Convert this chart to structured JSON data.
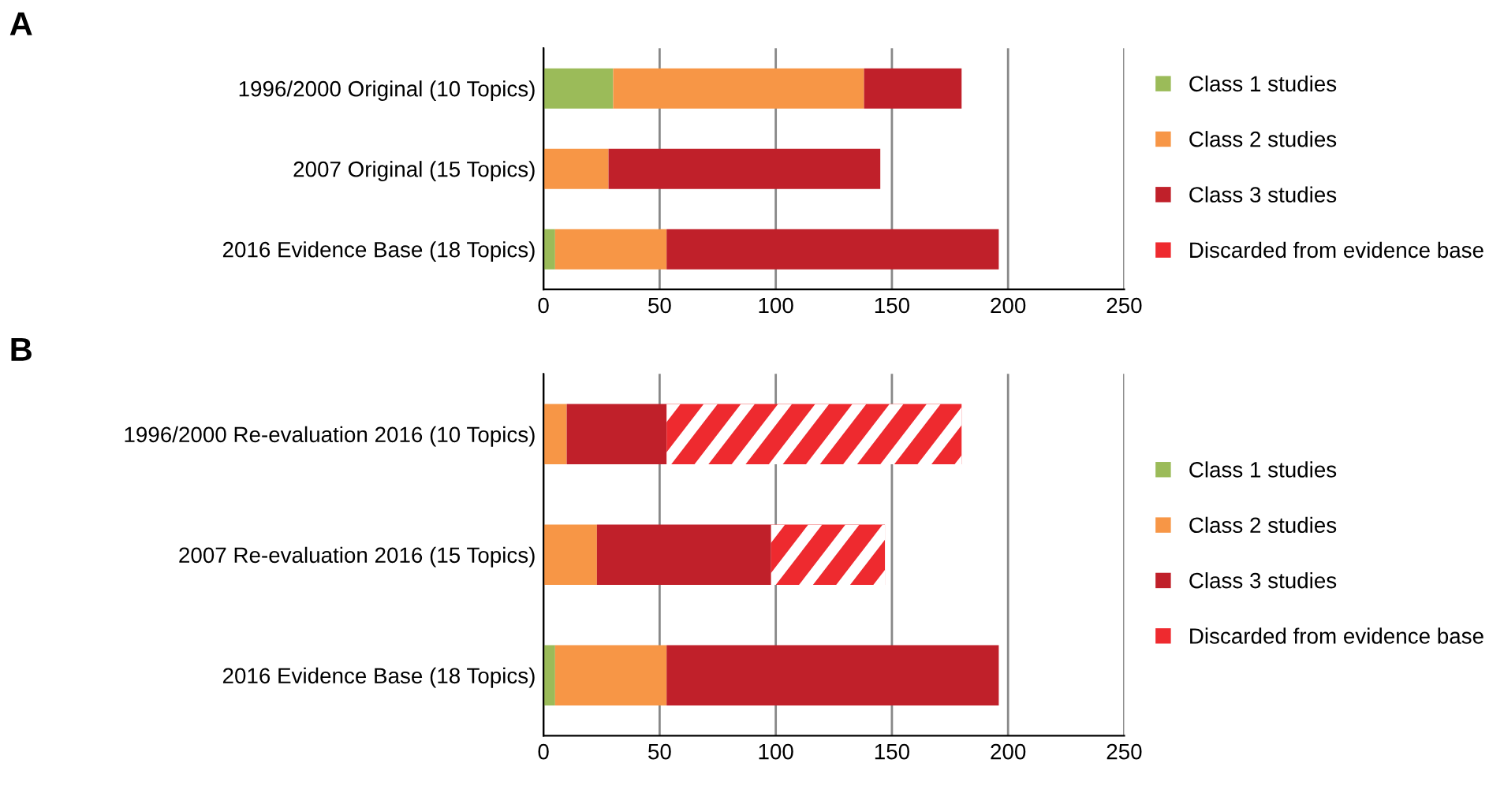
{
  "chart_data": [
    {
      "type": "bar",
      "title": "A",
      "orientation": "horizontal",
      "stacked": true,
      "categories": [
        "1996/2000 Original (10 Topics)",
        "2007 Original (15 Topics)",
        "2016 Evidence Base (18 Topics)"
      ],
      "series": [
        {
          "name": "Class 1 studies",
          "color": "#9bbb59",
          "values": [
            30,
            0,
            5
          ]
        },
        {
          "name": "Class 2 studies",
          "color": "#f79646",
          "values": [
            108,
            28,
            48
          ]
        },
        {
          "name": "Class 3 studies",
          "color": "#c0202a",
          "values": [
            42,
            117,
            143
          ]
        },
        {
          "name": "Discarded from evidence base",
          "color": "#ee2a2f",
          "values": [
            null,
            null,
            null
          ]
        }
      ],
      "xlim": [
        0,
        250
      ],
      "xticks": [
        0,
        50,
        100,
        150,
        200,
        250
      ],
      "grid": "x",
      "legend": "right"
    },
    {
      "type": "bar",
      "title": "B",
      "orientation": "horizontal",
      "stacked": true,
      "categories": [
        "1996/2000 Re-evaluation 2016 (10 Topics)",
        "2007 Re-evaluation 2016 (15 Topics)",
        "2016 Evidence Base (18 Topics)"
      ],
      "series": [
        {
          "name": "Class 1 studies",
          "color": "#9bbb59",
          "values": [
            0,
            0,
            5
          ]
        },
        {
          "name": "Class 2 studies",
          "color": "#f79646",
          "values": [
            10,
            23,
            48
          ]
        },
        {
          "name": "Class 3 studies",
          "color": "#c0202a",
          "values": [
            43,
            75,
            143
          ]
        },
        {
          "name": "Discarded from evidence base",
          "color": "#ee2a2f",
          "values": [
            127,
            49,
            null
          ]
        }
      ],
      "xlim": [
        0,
        250
      ],
      "xticks": [
        0,
        50,
        100,
        150,
        200,
        250
      ],
      "grid": "x",
      "legend": "right"
    }
  ]
}
